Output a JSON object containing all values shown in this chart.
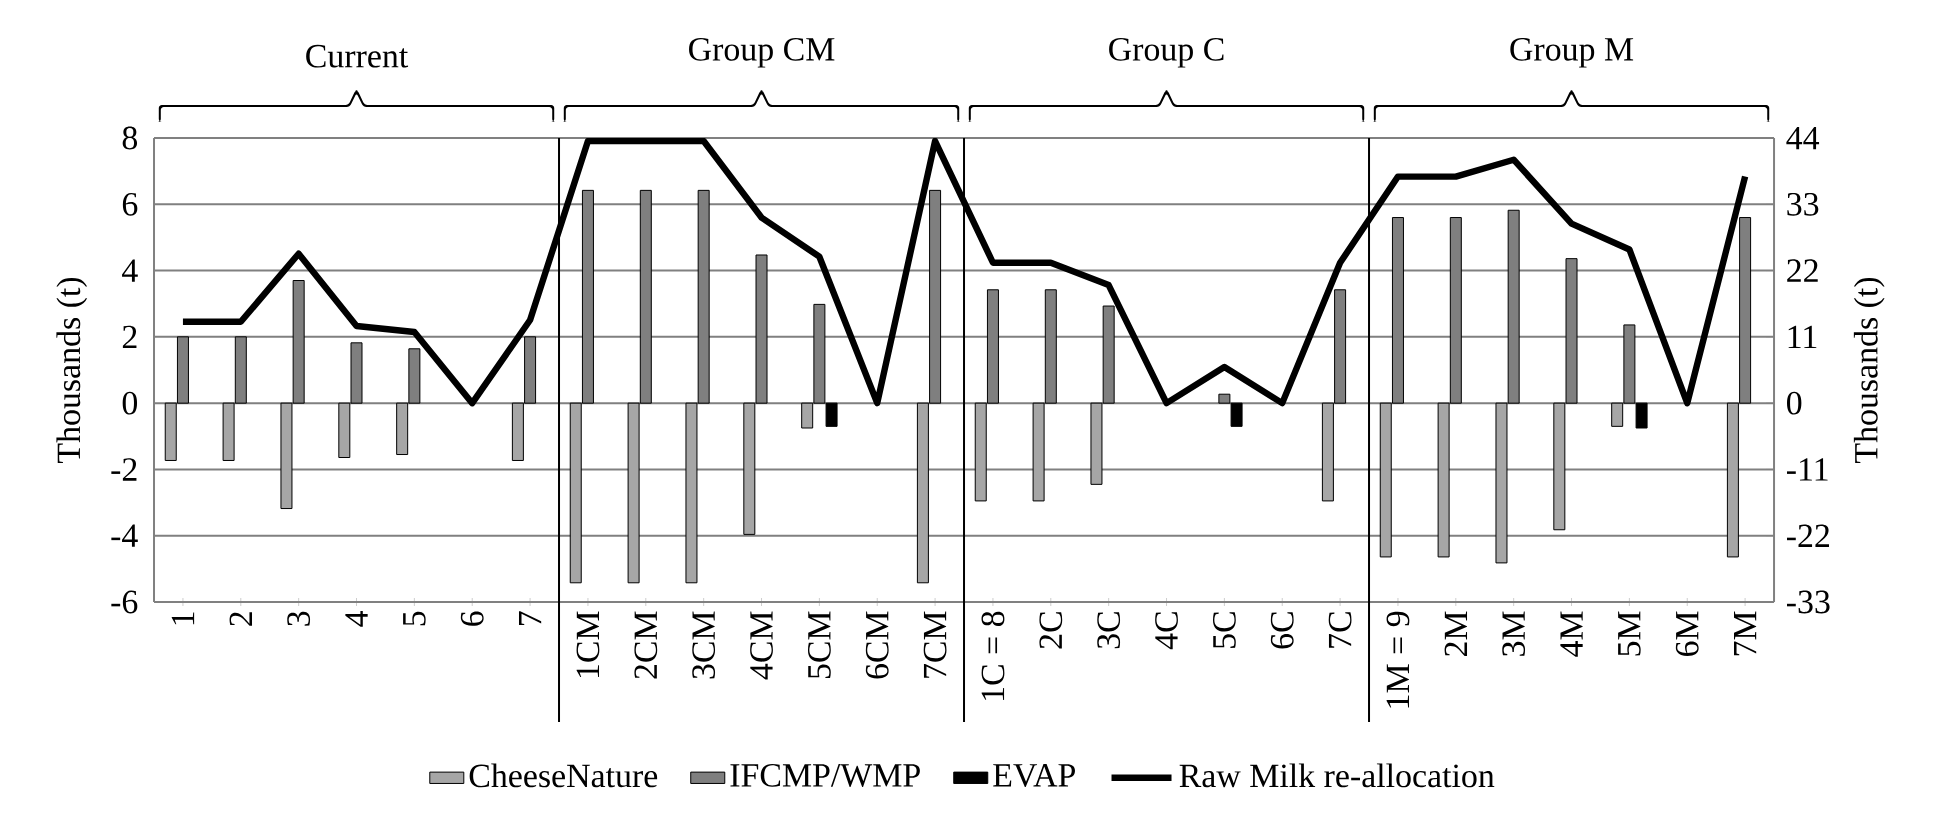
{
  "chart_data": {
    "type": "bar",
    "categories": [
      "1",
      "2",
      "3",
      "4",
      "5",
      "6",
      "7",
      "1CM",
      "2CM",
      "3CM",
      "4CM",
      "5CM",
      "6CM",
      "7CM",
      "1C = 8",
      "2C",
      "3C",
      "4C",
      "5C",
      "6C",
      "7C",
      "1M = 9",
      "2M",
      "3M",
      "4M",
      "5M",
      "6M",
      "7M"
    ],
    "series": [
      {
        "name": "CheeseNature",
        "color": "#a6a6a6",
        "values": [
          -1.73,
          -1.73,
          -3.18,
          -1.64,
          -1.55,
          null,
          -1.73,
          -5.42,
          -5.42,
          -5.42,
          -3.96,
          -0.75,
          null,
          -5.42,
          -2.95,
          -2.95,
          -2.45,
          null,
          null,
          null,
          -2.95,
          -4.64,
          -4.64,
          -4.82,
          -3.82,
          -0.7,
          null,
          -4.64
        ]
      },
      {
        "name": "IFCMP/WMP",
        "color": "#7f7f7f",
        "values": [
          2.0,
          2.0,
          3.7,
          1.82,
          1.64,
          null,
          2.0,
          6.42,
          6.42,
          6.42,
          4.47,
          2.98,
          null,
          6.42,
          3.42,
          3.42,
          2.93,
          null,
          0.27,
          null,
          3.42,
          5.6,
          5.6,
          5.82,
          4.36,
          2.36,
          null,
          5.6
        ]
      },
      {
        "name": "EVAP",
        "color": "#000000",
        "values": [
          null,
          null,
          null,
          null,
          null,
          null,
          null,
          null,
          null,
          null,
          null,
          -0.7,
          null,
          null,
          null,
          null,
          null,
          null,
          -0.7,
          null,
          null,
          null,
          null,
          null,
          null,
          -0.75,
          null,
          null
        ]
      },
      {
        "name": "Raw Milk re-allocation",
        "color": "#000000",
        "type": "line",
        "axis": "y2",
        "values": [
          13.5,
          13.5,
          24.8,
          12.8,
          11.8,
          0,
          13.8,
          43.5,
          43.5,
          43.5,
          30.8,
          24.3,
          0,
          43.5,
          23.3,
          23.3,
          19.6,
          0,
          6,
          0,
          23.3,
          37.6,
          37.6,
          40.4,
          29.8,
          25.5,
          0,
          37.6
        ]
      }
    ],
    "ylim": [
      -6,
      8
    ],
    "yticks": [
      -6,
      -4,
      -2,
      0,
      2,
      4,
      6,
      8
    ],
    "y2lim": [
      -33,
      44
    ],
    "y2ticks": [
      -33,
      -22,
      -11,
      0,
      11,
      22,
      33,
      44
    ],
    "ylabel": "Thousands (t)",
    "y2label": "Thousands (t)",
    "grid": "y",
    "legend": "bottom",
    "annotations": [
      "Current",
      "Group CM",
      "Group C",
      "Group M"
    ]
  }
}
